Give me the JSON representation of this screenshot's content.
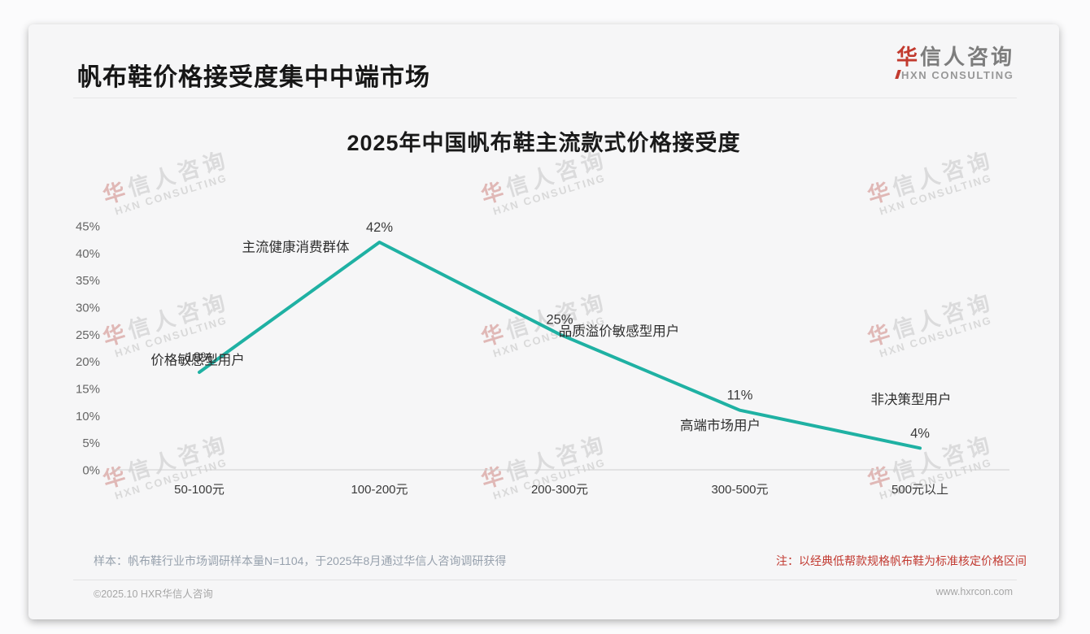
{
  "header": {
    "title": "帆布鞋价格接受度集中中端市场"
  },
  "logo": {
    "accent": "华",
    "rest": "信人咨询",
    "sub": "HXN CONSULTING"
  },
  "watermark": {
    "accent": "华",
    "rest": "信人咨询",
    "sub": "HXN CONSULTING"
  },
  "notes": {
    "sample": "样本：帆布鞋行业市场调研样本量N=1104，于2025年8月通过华信人咨询调研获得",
    "pricing": "注：以经典低帮款规格帆布鞋为标准核定价格区间"
  },
  "footer": {
    "left": "©2025.10 HXR华信人咨询",
    "right": "www.hxrcon.com"
  },
  "chart_data": {
    "type": "line",
    "title": "2025年中国帆布鞋主流款式价格接受度",
    "categories": [
      "50-100元",
      "100-200元",
      "200-300元",
      "300-500元",
      "500元以上"
    ],
    "values": [
      18,
      42,
      25,
      11,
      4
    ],
    "point_labels": [
      "18%",
      "42%",
      "25%",
      "11%",
      "4%"
    ],
    "annotations": [
      "价格敏感型用户",
      "主流健康消费群体",
      "品质溢价敏感型用户",
      "高端市场用户",
      "非决策型用户"
    ],
    "xlabel": "",
    "ylabel": "",
    "ylim": [
      0,
      45
    ],
    "ytick_step": 5,
    "ytick_labels": [
      "45%",
      "40%",
      "35%",
      "30%",
      "25%",
      "20%",
      "15%",
      "10%",
      "5%",
      "0%"
    ],
    "grid": false,
    "legend": null,
    "line_color": "#1fb1a3",
    "axis_color": "#cfcfcf"
  }
}
